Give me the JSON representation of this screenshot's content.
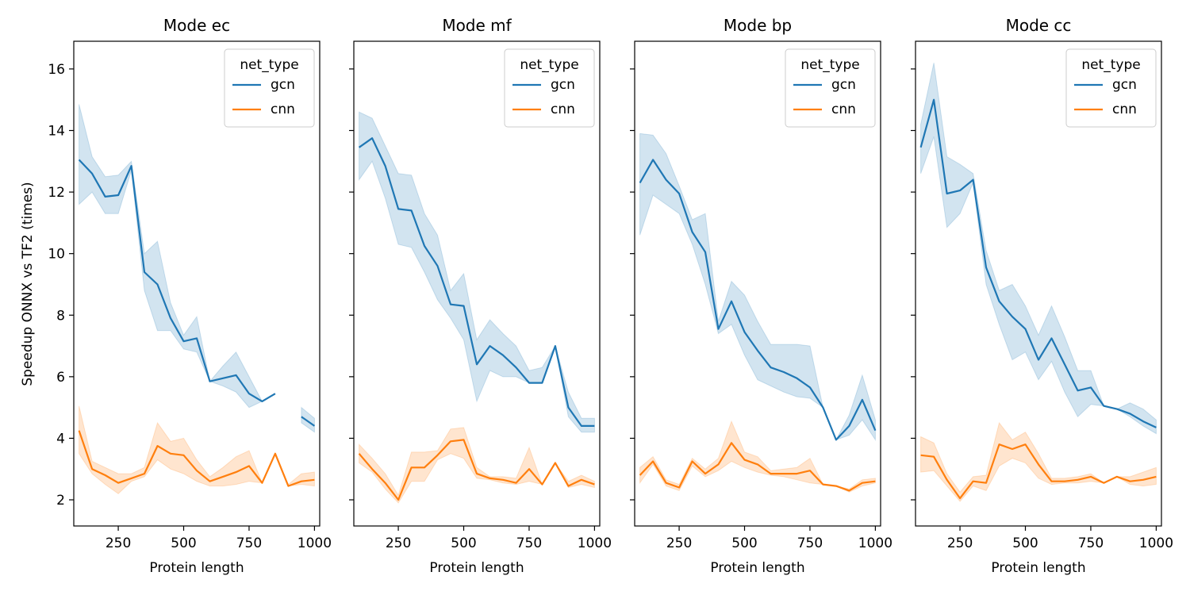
{
  "chart_data": {
    "type": "line",
    "ylabel": "Speedup ONNX vs TF2 (times)",
    "xlabel": "Protein length",
    "xlim": [
      80,
      1020
    ],
    "ylim": [
      1.15,
      16.9
    ],
    "xticks": [
      250,
      500,
      750,
      1000
    ],
    "yticks": [
      2,
      4,
      6,
      8,
      10,
      12,
      14,
      16
    ],
    "legend": {
      "title": "net_type",
      "position": "top-right",
      "entries": [
        {
          "name": "gcn",
          "color": "#1f77b4"
        },
        {
          "name": "cnn",
          "color": "#ff7f0e"
        }
      ]
    },
    "x": [
      100,
      150,
      200,
      250,
      300,
      350,
      400,
      450,
      500,
      550,
      600,
      650,
      700,
      750,
      800,
      850,
      900,
      950,
      1000
    ],
    "panels": [
      {
        "title": "Mode ec",
        "series": [
          {
            "name": "gcn",
            "color": "#1f77b4",
            "values": [
              13.05,
              12.6,
              11.85,
              11.9,
              12.85,
              9.4,
              9.0,
              7.9,
              7.15,
              7.25,
              5.85,
              5.95,
              6.05,
              5.45,
              5.2,
              5.45,
              null,
              4.7,
              4.4
            ],
            "lower": [
              11.6,
              12.0,
              11.3,
              11.3,
              12.7,
              8.8,
              7.5,
              7.5,
              6.9,
              6.8,
              5.85,
              5.7,
              5.5,
              5.0,
              5.2,
              5.45,
              null,
              4.5,
              4.2
            ],
            "upper": [
              14.85,
              13.15,
              12.5,
              12.55,
              13.0,
              10.0,
              10.4,
              8.4,
              7.35,
              7.95,
              5.85,
              6.35,
              6.8,
              6.0,
              5.2,
              5.45,
              null,
              5.0,
              4.65
            ]
          },
          {
            "name": "cnn",
            "color": "#ff7f0e",
            "values": [
              4.25,
              3.0,
              2.8,
              2.55,
              2.7,
              2.85,
              3.75,
              3.5,
              3.45,
              2.95,
              2.6,
              2.75,
              2.9,
              3.1,
              2.55,
              3.5,
              2.45,
              2.6,
              2.65
            ],
            "lower": [
              3.5,
              2.85,
              2.5,
              2.2,
              2.6,
              2.75,
              3.3,
              3.0,
              2.85,
              2.6,
              2.45,
              2.45,
              2.5,
              2.6,
              2.55,
              3.5,
              2.45,
              2.5,
              2.45
            ],
            "upper": [
              5.05,
              3.25,
              3.05,
              2.85,
              2.85,
              3.05,
              4.5,
              3.9,
              4.0,
              3.3,
              2.75,
              3.05,
              3.4,
              3.6,
              2.55,
              3.5,
              2.5,
              2.85,
              2.9
            ]
          }
        ]
      },
      {
        "title": "Mode mf",
        "series": [
          {
            "name": "gcn",
            "color": "#1f77b4",
            "values": [
              13.45,
              13.75,
              12.85,
              11.45,
              11.4,
              10.25,
              9.6,
              8.35,
              8.3,
              6.4,
              7.0,
              6.7,
              6.3,
              5.8,
              5.8,
              7.0,
              5.0,
              4.4,
              4.4
            ],
            "lower": [
              12.4,
              13.0,
              11.8,
              10.3,
              10.2,
              9.4,
              8.5,
              7.9,
              7.2,
              5.2,
              6.2,
              6.0,
              6.0,
              5.8,
              5.8,
              7.0,
              4.7,
              4.2,
              4.2
            ],
            "upper": [
              14.6,
              14.4,
              13.5,
              12.6,
              12.55,
              11.3,
              10.6,
              8.8,
              9.35,
              7.2,
              7.85,
              7.4,
              7.0,
              6.2,
              6.3,
              7.0,
              5.5,
              4.65,
              4.65
            ]
          },
          {
            "name": "cnn",
            "color": "#ff7f0e",
            "values": [
              3.5,
              3.0,
              2.55,
              2.0,
              3.05,
              3.05,
              3.45,
              3.9,
              3.95,
              2.85,
              2.7,
              2.65,
              2.55,
              3.0,
              2.5,
              3.2,
              2.45,
              2.65,
              2.5
            ],
            "lower": [
              3.2,
              2.9,
              2.35,
              1.9,
              2.6,
              2.6,
              3.3,
              3.5,
              3.35,
              2.7,
              2.65,
              2.55,
              2.5,
              2.6,
              2.5,
              3.2,
              2.4,
              2.5,
              2.4
            ],
            "upper": [
              3.8,
              3.35,
              2.85,
              2.15,
              3.55,
              3.55,
              3.6,
              4.3,
              4.35,
              3.05,
              2.75,
              2.75,
              2.7,
              3.7,
              2.5,
              3.2,
              2.6,
              2.8,
              2.6
            ]
          }
        ]
      },
      {
        "title": "Mode bp",
        "series": [
          {
            "name": "gcn",
            "color": "#1f77b4",
            "values": [
              12.3,
              13.05,
              12.4,
              11.95,
              10.7,
              10.05,
              7.55,
              8.45,
              7.45,
              6.85,
              6.3,
              6.15,
              5.95,
              5.65,
              5.0,
              3.95,
              4.4,
              5.25,
              4.25
            ],
            "lower": [
              10.6,
              11.9,
              11.6,
              11.3,
              10.3,
              9.0,
              7.4,
              7.7,
              6.7,
              5.9,
              5.7,
              5.5,
              5.35,
              5.3,
              5.0,
              3.95,
              4.1,
              4.6,
              3.95
            ],
            "upper": [
              13.9,
              13.85,
              13.25,
              12.2,
              11.1,
              11.3,
              7.8,
              9.1,
              8.65,
              7.8,
              7.05,
              7.05,
              7.05,
              7.0,
              5.0,
              3.95,
              4.75,
              6.05,
              4.6
            ]
          },
          {
            "name": "cnn",
            "color": "#ff7f0e",
            "values": [
              2.8,
              3.25,
              2.55,
              2.4,
              3.25,
              2.85,
              3.15,
              3.85,
              3.3,
              3.15,
              2.85,
              2.85,
              2.85,
              2.95,
              2.5,
              2.45,
              2.3,
              2.55,
              2.6
            ],
            "lower": [
              2.55,
              3.15,
              2.45,
              2.3,
              3.1,
              2.75,
              2.95,
              3.25,
              3.05,
              2.9,
              2.8,
              2.75,
              2.65,
              2.55,
              2.5,
              2.45,
              2.25,
              2.45,
              2.55
            ],
            "upper": [
              3.05,
              3.4,
              2.65,
              2.5,
              3.35,
              3.0,
              3.35,
              4.55,
              3.55,
              3.4,
              2.95,
              3.0,
              3.05,
              3.35,
              2.5,
              2.45,
              2.35,
              2.65,
              2.7
            ]
          }
        ]
      },
      {
        "title": "Mode cc",
        "series": [
          {
            "name": "gcn",
            "color": "#1f77b4",
            "values": [
              13.45,
              15.0,
              11.95,
              12.05,
              12.4,
              9.55,
              8.45,
              7.95,
              7.55,
              6.55,
              7.25,
              6.4,
              5.55,
              5.65,
              5.05,
              4.95,
              4.8,
              4.55,
              4.35
            ],
            "lower": [
              12.6,
              13.8,
              10.85,
              11.3,
              12.3,
              9.0,
              7.7,
              6.55,
              6.8,
              5.9,
              6.5,
              5.5,
              4.7,
              5.1,
              5.05,
              4.95,
              4.7,
              4.4,
              4.15
            ],
            "upper": [
              14.2,
              16.2,
              13.15,
              12.9,
              12.6,
              10.1,
              8.8,
              9.0,
              8.3,
              7.35,
              8.3,
              7.3,
              6.2,
              6.2,
              5.05,
              4.95,
              5.15,
              4.95,
              4.6
            ]
          },
          {
            "name": "cnn",
            "color": "#ff7f0e",
            "values": [
              3.45,
              3.4,
              2.65,
              2.05,
              2.6,
              2.55,
              3.8,
              3.65,
              3.8,
              3.15,
              2.6,
              2.6,
              2.65,
              2.75,
              2.55,
              2.75,
              2.6,
              2.65,
              2.75
            ],
            "lower": [
              2.9,
              2.95,
              2.45,
              1.95,
              2.45,
              2.3,
              3.1,
              3.35,
              3.2,
              2.7,
              2.5,
              2.55,
              2.55,
              2.6,
              2.55,
              2.75,
              2.5,
              2.45,
              2.5
            ],
            "upper": [
              4.05,
              3.85,
              2.85,
              2.25,
              2.75,
              2.8,
              4.5,
              3.95,
              4.2,
              3.5,
              2.7,
              2.7,
              2.75,
              2.85,
              2.55,
              2.75,
              2.75,
              2.9,
              3.05
            ]
          }
        ]
      }
    ]
  }
}
